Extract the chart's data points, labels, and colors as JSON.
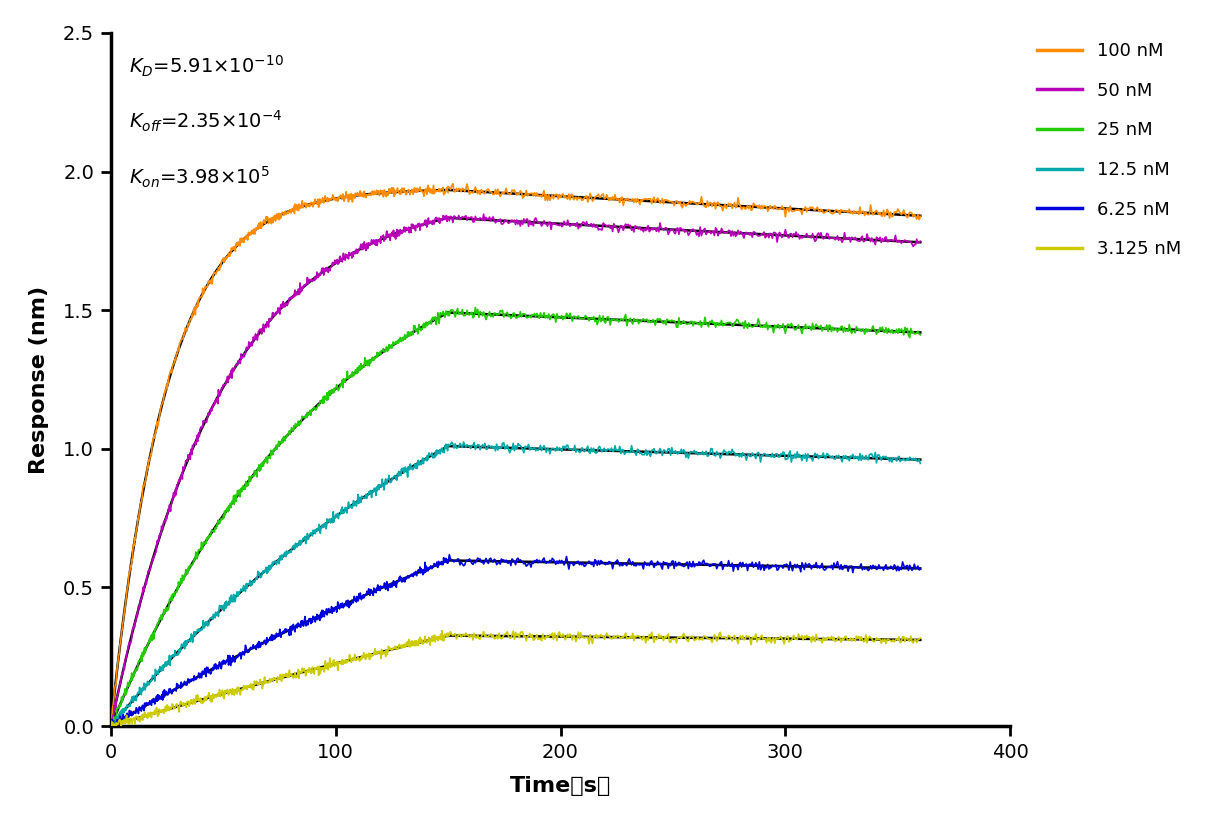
{
  "xlabel": "Time（s）",
  "ylabel": "Response (nm)",
  "xlim": [
    0,
    400
  ],
  "ylim": [
    0.0,
    2.5
  ],
  "xticks": [
    0,
    100,
    200,
    300,
    400
  ],
  "yticks": [
    0.0,
    0.5,
    1.0,
    1.5,
    2.0,
    2.5
  ],
  "kon": 398000.0,
  "koff": 0.000235,
  "KD": 5.91e-10,
  "association_end": 150,
  "dissociation_end": 360,
  "concentrations_nM": [
    100,
    50,
    25,
    12.5,
    6.25,
    3.125
  ],
  "colors": [
    "#FF8C00",
    "#BB00BB",
    "#22CC00",
    "#00AAAA",
    "#0000DD",
    "#CCCC00"
  ],
  "labels": [
    "100 nM",
    "50 nM",
    "25 nM",
    "12.5 nM",
    "6.25 nM",
    "3.125 nM"
  ],
  "Rmax": 1.95,
  "noise_amplitude": 0.008,
  "fit_color": "#000000",
  "background_color": "#FFFFFF",
  "font_size": 13,
  "annotation_fontsize": 14,
  "legend_fontsize": 13,
  "fit_lw": 1.8,
  "data_lw": 1.2
}
